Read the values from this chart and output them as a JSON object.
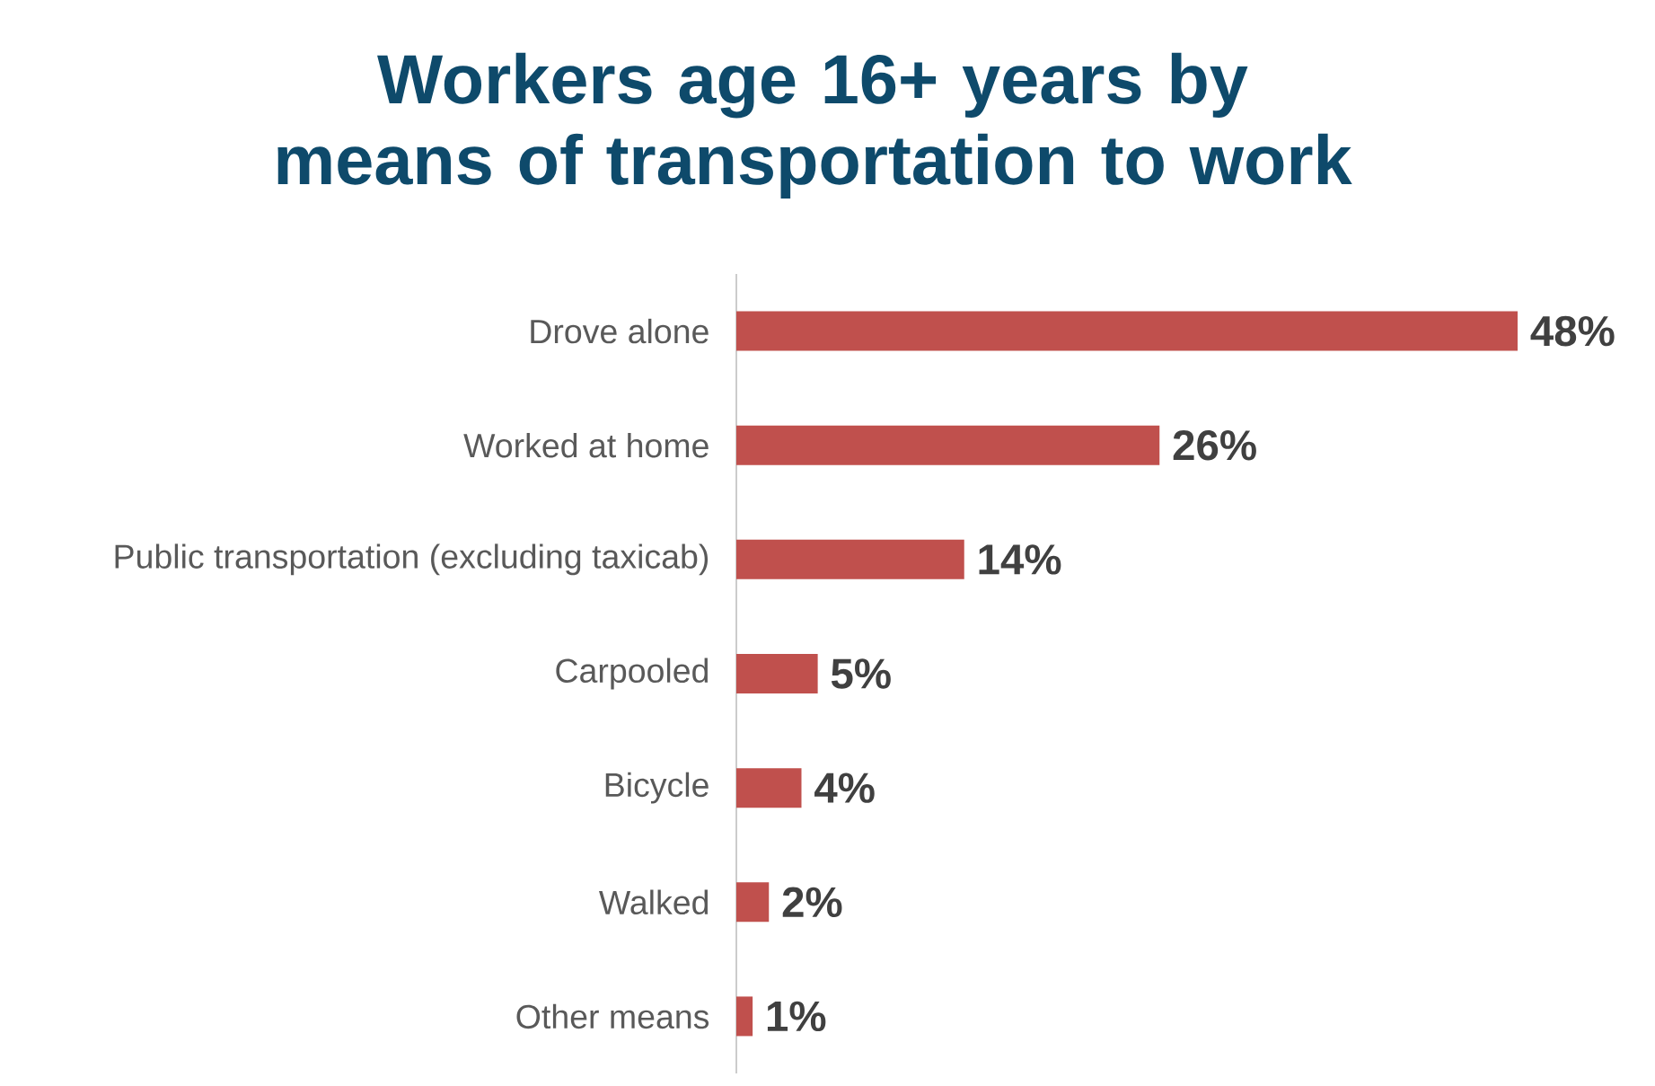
{
  "chart_data": {
    "type": "bar",
    "orientation": "horizontal",
    "title": "Workers age 16+ years by means of transportation to work",
    "categories": [
      "Drove alone",
      "Worked at home",
      "Public transportation (excluding taxicab)",
      "Carpooled",
      "Bicycle",
      "Walked",
      "Other means"
    ],
    "values": [
      48,
      26,
      14,
      5,
      4,
      2,
      1
    ],
    "value_labels": [
      "48%",
      "26%",
      "14%",
      "5%",
      "4%",
      "2%",
      "1%"
    ],
    "color": "#c0504d"
  }
}
